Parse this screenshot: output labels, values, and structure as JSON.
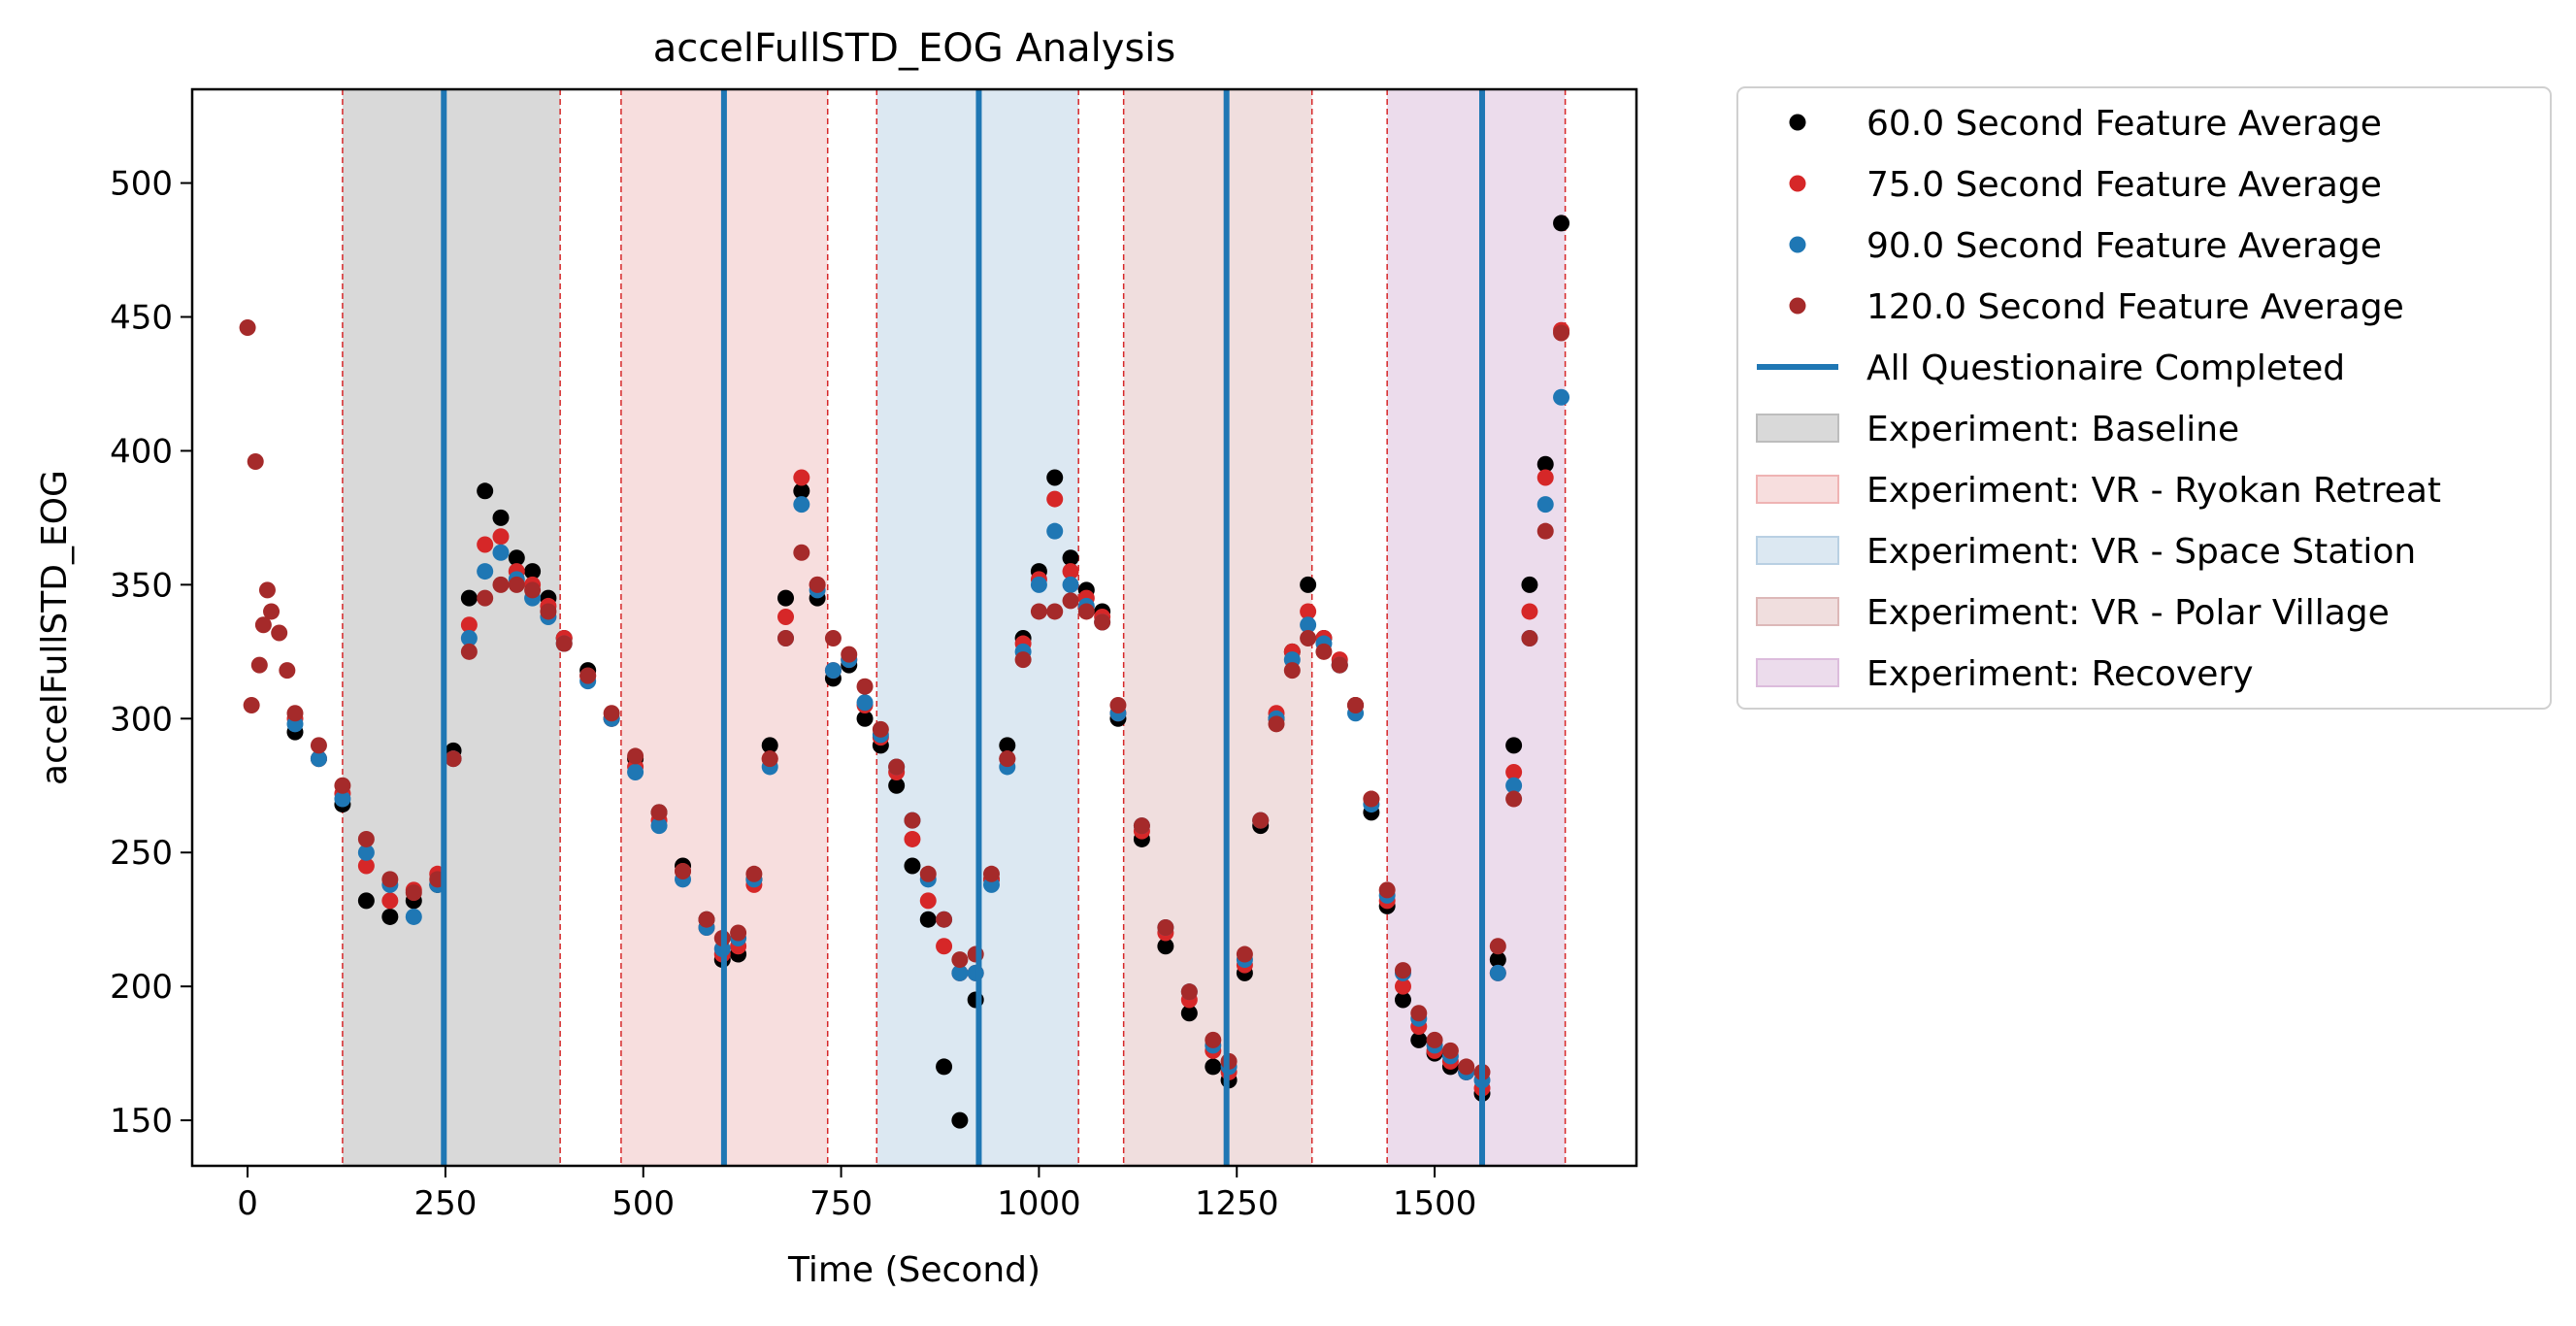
{
  "chart_data": {
    "type": "scatter",
    "title": "accelFullSTD_EOG Analysis",
    "xlabel": "Time (Second)",
    "ylabel": "accelFullSTD_EOG",
    "xlim": [
      -70,
      1755
    ],
    "ylim": [
      133,
      535
    ],
    "xticks": [
      0,
      250,
      500,
      750,
      1000,
      1250,
      1500
    ],
    "xtick_labels": [
      "0",
      "250",
      "500",
      "750",
      "1000",
      "1250",
      "1500"
    ],
    "yticks": [
      150,
      200,
      250,
      300,
      350,
      400,
      450,
      500
    ],
    "ytick_labels": [
      "150",
      "200",
      "250",
      "300",
      "350",
      "400",
      "450",
      "500"
    ],
    "grid": false,
    "legend_position": "outside-right",
    "legend": [
      {
        "label": "60.0 Second Feature Average",
        "kind": "point",
        "color": "#000000"
      },
      {
        "label": "75.0 Second Feature Average",
        "kind": "point",
        "color": "#d62728"
      },
      {
        "label": "90.0 Second Feature Average",
        "kind": "point",
        "color": "#1f77b4"
      },
      {
        "label": "120.0 Second Feature Average",
        "kind": "point",
        "color": "#a52a2a"
      },
      {
        "label": "All Questionaire Completed",
        "kind": "line",
        "color": "#1f77b4"
      },
      {
        "label": "Experiment: Baseline",
        "kind": "patch",
        "color": "#d9d9d9",
        "edge": "#bdbdbd"
      },
      {
        "label": "Experiment: VR - Ryokan Retreat",
        "kind": "patch",
        "color": "#f7dede",
        "edge": "#efb3b3"
      },
      {
        "label": "Experiment: VR - Space Station",
        "kind": "patch",
        "color": "#dce8f2",
        "edge": "#b9d0e3"
      },
      {
        "label": "Experiment: VR - Polar Village",
        "kind": "patch",
        "color": "#f0dede",
        "edge": "#ddb8b8"
      },
      {
        "label": "Experiment: Recovery",
        "kind": "patch",
        "color": "#ecdcec",
        "edge": "#dcbcdc"
      }
    ],
    "phases": [
      {
        "name": "Experiment: Baseline",
        "start": 120,
        "end": 395,
        "color": "#d9d9d9"
      },
      {
        "name": "Experiment: VR - Ryokan Retreat",
        "start": 472,
        "end": 733,
        "color": "#f7dede"
      },
      {
        "name": "Experiment: VR - Space Station",
        "start": 795,
        "end": 1050,
        "color": "#dce8f2"
      },
      {
        "name": "Experiment: VR - Polar Village",
        "start": 1107,
        "end": 1345,
        "color": "#f0dede"
      },
      {
        "name": "Experiment: Recovery",
        "start": 1440,
        "end": 1665,
        "color": "#ecdcec"
      }
    ],
    "questionnaire_lines": [
      248,
      602,
      924,
      1237,
      1560
    ],
    "series": [
      {
        "name": "60.0 Second Feature Average",
        "color": "#000000",
        "x": [
          60,
          90,
          120,
          150,
          180,
          210,
          240,
          260,
          280,
          300,
          320,
          340,
          360,
          380,
          400,
          430,
          460,
          490,
          520,
          550,
          580,
          600,
          620,
          640,
          660,
          680,
          700,
          720,
          740,
          760,
          780,
          800,
          820,
          840,
          860,
          880,
          900,
          920,
          940,
          960,
          980,
          1000,
          1020,
          1040,
          1060,
          1080,
          1100,
          1130,
          1160,
          1190,
          1220,
          1240,
          1260,
          1280,
          1300,
          1320,
          1340,
          1360,
          1380,
          1400,
          1420,
          1440,
          1460,
          1480,
          1500,
          1520,
          1540,
          1560,
          1580,
          1600,
          1620,
          1640,
          1660
        ],
        "y": [
          295,
          285,
          268,
          232,
          226,
          232,
          238,
          288,
          345,
          385,
          375,
          360,
          355,
          345,
          330,
          318,
          300,
          285,
          265,
          245,
          225,
          210,
          212,
          240,
          290,
          345,
          385,
          345,
          315,
          320,
          300,
          290,
          275,
          245,
          225,
          170,
          150,
          195,
          240,
          290,
          330,
          355,
          390,
          360,
          348,
          340,
          300,
          255,
          215,
          190,
          170,
          165,
          205,
          260,
          300,
          325,
          350,
          330,
          320,
          305,
          265,
          230,
          195,
          180,
          175,
          170,
          168,
          160,
          210,
          290,
          350,
          395,
          485
        ]
      },
      {
        "name": "75.0 Second Feature Average",
        "color": "#d62728",
        "x": [
          60,
          90,
          120,
          150,
          180,
          210,
          240,
          260,
          280,
          300,
          320,
          340,
          360,
          380,
          400,
          430,
          460,
          490,
          520,
          550,
          580,
          600,
          620,
          640,
          660,
          680,
          700,
          720,
          740,
          760,
          780,
          800,
          820,
          840,
          860,
          880,
          900,
          920,
          940,
          960,
          980,
          1000,
          1020,
          1040,
          1060,
          1080,
          1100,
          1130,
          1160,
          1190,
          1220,
          1240,
          1260,
          1280,
          1300,
          1320,
          1340,
          1360,
          1380,
          1400,
          1420,
          1440,
          1460,
          1480,
          1500,
          1520,
          1540,
          1560,
          1580,
          1600,
          1620,
          1640,
          1660
        ],
        "y": [
          300,
          285,
          272,
          245,
          232,
          236,
          242,
          285,
          335,
          365,
          368,
          355,
          350,
          342,
          330,
          316,
          300,
          282,
          262,
          243,
          222,
          212,
          215,
          238,
          285,
          338,
          390,
          350,
          318,
          322,
          305,
          293,
          280,
          255,
          232,
          215,
          205,
          205,
          240,
          285,
          328,
          352,
          382,
          355,
          345,
          338,
          302,
          258,
          220,
          195,
          176,
          168,
          208,
          262,
          302,
          325,
          340,
          330,
          322,
          305,
          270,
          232,
          200,
          185,
          176,
          172,
          168,
          162,
          205,
          280,
          340,
          390,
          445
        ]
      },
      {
        "name": "90.0 Second Feature Average",
        "color": "#1f77b4",
        "x": [
          60,
          90,
          120,
          150,
          180,
          210,
          240,
          260,
          280,
          300,
          320,
          340,
          360,
          380,
          400,
          430,
          460,
          490,
          520,
          550,
          580,
          600,
          620,
          640,
          660,
          680,
          700,
          720,
          740,
          760,
          780,
          800,
          820,
          840,
          860,
          880,
          900,
          920,
          940,
          960,
          980,
          1000,
          1020,
          1040,
          1060,
          1080,
          1100,
          1130,
          1160,
          1190,
          1220,
          1240,
          1260,
          1280,
          1300,
          1320,
          1340,
          1360,
          1380,
          1400,
          1420,
          1440,
          1460,
          1480,
          1500,
          1520,
          1540,
          1560,
          1580,
          1600,
          1620,
          1640,
          1660
        ],
        "y": [
          298,
          285,
          270,
          250,
          238,
          226,
          238,
          285,
          330,
          355,
          362,
          352,
          345,
          338,
          328,
          314,
          300,
          280,
          260,
          240,
          222,
          214,
          218,
          240,
          282,
          330,
          380,
          348,
          318,
          322,
          306,
          294,
          282,
          262,
          240,
          225,
          205,
          205,
          238,
          282,
          325,
          350,
          370,
          350,
          342,
          336,
          302,
          260,
          222,
          198,
          178,
          170,
          210,
          262,
          300,
          322,
          335,
          328,
          320,
          302,
          268,
          234,
          205,
          188,
          178,
          174,
          168,
          165,
          205,
          275,
          330,
          380,
          420
        ]
      },
      {
        "name": "120.0 Second Feature Average",
        "color": "#a52a2a",
        "x": [
          0,
          5,
          10,
          15,
          20,
          25,
          30,
          40,
          50,
          60,
          90,
          120,
          150,
          180,
          210,
          240,
          260,
          280,
          300,
          320,
          340,
          360,
          380,
          400,
          430,
          460,
          490,
          520,
          550,
          580,
          600,
          620,
          640,
          660,
          680,
          700,
          720,
          740,
          760,
          780,
          800,
          820,
          840,
          860,
          880,
          900,
          920,
          940,
          960,
          980,
          1000,
          1020,
          1040,
          1060,
          1080,
          1100,
          1130,
          1160,
          1190,
          1220,
          1240,
          1260,
          1280,
          1300,
          1320,
          1340,
          1360,
          1380,
          1400,
          1420,
          1440,
          1460,
          1480,
          1500,
          1520,
          1540,
          1560,
          1580,
          1600,
          1620,
          1640,
          1660
        ],
        "y": [
          446,
          305,
          396,
          320,
          335,
          348,
          340,
          332,
          318,
          302,
          290,
          275,
          255,
          240,
          235,
          240,
          285,
          325,
          345,
          350,
          350,
          348,
          340,
          328,
          316,
          302,
          286,
          265,
          243,
          225,
          218,
          220,
          242,
          285,
          330,
          362,
          350,
          330,
          324,
          312,
          296,
          282,
          262,
          242,
          225,
          210,
          212,
          242,
          285,
          322,
          340,
          340,
          344,
          340,
          336,
          305,
          260,
          222,
          198,
          180,
          172,
          212,
          262,
          298,
          318,
          330,
          325,
          320,
          305,
          270,
          236,
          206,
          190,
          180,
          176,
          170,
          168,
          215,
          270,
          330,
          370,
          444
        ]
      }
    ]
  }
}
